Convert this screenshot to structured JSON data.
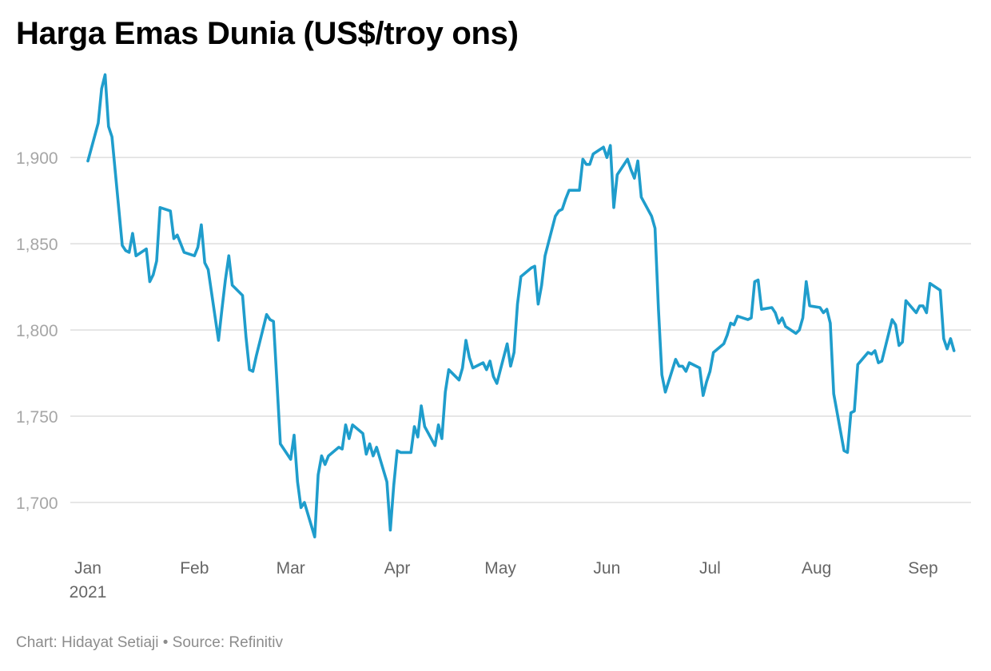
{
  "chart_data": {
    "type": "line",
    "title": "Harga Emas Dunia (US$/troy ons)",
    "xlabel": "",
    "ylabel": "",
    "y_tick_values": [
      1700,
      1750,
      1800,
      1850,
      1900
    ],
    "y_tick_labels": [
      "1,700",
      "1,750",
      "1,800",
      "1,850",
      "1,900"
    ],
    "ylim": [
      1675,
      1945
    ],
    "x_ticks": [
      {
        "date": "2021-01-01",
        "label": "Jan",
        "sublabel": "2021"
      },
      {
        "date": "2021-02-01",
        "label": "Feb",
        "sublabel": ""
      },
      {
        "date": "2021-03-01",
        "label": "Mar",
        "sublabel": ""
      },
      {
        "date": "2021-04-01",
        "label": "Apr",
        "sublabel": ""
      },
      {
        "date": "2021-05-01",
        "label": "May",
        "sublabel": ""
      },
      {
        "date": "2021-06-01",
        "label": "Jun",
        "sublabel": ""
      },
      {
        "date": "2021-07-01",
        "label": "Jul",
        "sublabel": ""
      },
      {
        "date": "2021-08-01",
        "label": "Aug",
        "sublabel": ""
      },
      {
        "date": "2021-09-01",
        "label": "Sep",
        "sublabel": ""
      }
    ],
    "xlim": [
      "2021-01-01",
      "2021-09-11"
    ],
    "grid": true,
    "series": [
      {
        "color": "#1f9dcc",
        "points": [
          [
            "2021-01-01",
            1898
          ],
          [
            "2021-01-04",
            1920
          ],
          [
            "2021-01-05",
            1940
          ],
          [
            "2021-01-06",
            1948
          ],
          [
            "2021-01-07",
            1918
          ],
          [
            "2021-01-08",
            1912
          ],
          [
            "2021-01-11",
            1849
          ],
          [
            "2021-01-12",
            1846
          ],
          [
            "2021-01-13",
            1845
          ],
          [
            "2021-01-14",
            1856
          ],
          [
            "2021-01-15",
            1843
          ],
          [
            "2021-01-18",
            1847
          ],
          [
            "2021-01-19",
            1828
          ],
          [
            "2021-01-20",
            1832
          ],
          [
            "2021-01-21",
            1840
          ],
          [
            "2021-01-22",
            1871
          ],
          [
            "2021-01-25",
            1869
          ],
          [
            "2021-01-26",
            1853
          ],
          [
            "2021-01-27",
            1855
          ],
          [
            "2021-01-28",
            1850
          ],
          [
            "2021-01-29",
            1845
          ],
          [
            "2021-02-01",
            1843
          ],
          [
            "2021-02-02",
            1848
          ],
          [
            "2021-02-03",
            1861
          ],
          [
            "2021-02-04",
            1839
          ],
          [
            "2021-02-05",
            1835
          ],
          [
            "2021-02-08",
            1794
          ],
          [
            "2021-02-09",
            1812
          ],
          [
            "2021-02-10",
            1829
          ],
          [
            "2021-02-11",
            1843
          ],
          [
            "2021-02-12",
            1826
          ],
          [
            "2021-02-15",
            1820
          ],
          [
            "2021-02-16",
            1796
          ],
          [
            "2021-02-17",
            1777
          ],
          [
            "2021-02-18",
            1776
          ],
          [
            "2021-02-19",
            1785
          ],
          [
            "2021-02-22",
            1809
          ],
          [
            "2021-02-23",
            1806
          ],
          [
            "2021-02-24",
            1805
          ],
          [
            "2021-02-25",
            1770
          ],
          [
            "2021-02-26",
            1734
          ],
          [
            "2021-03-01",
            1725
          ],
          [
            "2021-03-02",
            1739
          ],
          [
            "2021-03-03",
            1712
          ],
          [
            "2021-03-04",
            1697
          ],
          [
            "2021-03-05",
            1700
          ],
          [
            "2021-03-08",
            1680
          ],
          [
            "2021-03-09",
            1716
          ],
          [
            "2021-03-10",
            1727
          ],
          [
            "2021-03-11",
            1722
          ],
          [
            "2021-03-12",
            1727
          ],
          [
            "2021-03-15",
            1732
          ],
          [
            "2021-03-16",
            1731
          ],
          [
            "2021-03-17",
            1745
          ],
          [
            "2021-03-18",
            1737
          ],
          [
            "2021-03-19",
            1745
          ],
          [
            "2021-03-22",
            1740
          ],
          [
            "2021-03-23",
            1728
          ],
          [
            "2021-03-24",
            1734
          ],
          [
            "2021-03-25",
            1727
          ],
          [
            "2021-03-26",
            1732
          ],
          [
            "2021-03-29",
            1712
          ],
          [
            "2021-03-30",
            1684
          ],
          [
            "2021-03-31",
            1710
          ],
          [
            "2021-04-01",
            1730
          ],
          [
            "2021-04-02",
            1729
          ],
          [
            "2021-04-05",
            1729
          ],
          [
            "2021-04-06",
            1744
          ],
          [
            "2021-04-07",
            1738
          ],
          [
            "2021-04-08",
            1756
          ],
          [
            "2021-04-09",
            1744
          ],
          [
            "2021-04-12",
            1733
          ],
          [
            "2021-04-13",
            1745
          ],
          [
            "2021-04-14",
            1737
          ],
          [
            "2021-04-15",
            1764
          ],
          [
            "2021-04-16",
            1777
          ],
          [
            "2021-04-19",
            1771
          ],
          [
            "2021-04-20",
            1778
          ],
          [
            "2021-04-21",
            1794
          ],
          [
            "2021-04-22",
            1784
          ],
          [
            "2021-04-23",
            1778
          ],
          [
            "2021-04-26",
            1781
          ],
          [
            "2021-04-27",
            1777
          ],
          [
            "2021-04-28",
            1782
          ],
          [
            "2021-04-29",
            1773
          ],
          [
            "2021-04-30",
            1769
          ],
          [
            "2021-05-03",
            1792
          ],
          [
            "2021-05-04",
            1779
          ],
          [
            "2021-05-05",
            1787
          ],
          [
            "2021-05-06",
            1815
          ],
          [
            "2021-05-07",
            1831
          ],
          [
            "2021-05-10",
            1836
          ],
          [
            "2021-05-11",
            1837
          ],
          [
            "2021-05-12",
            1815
          ],
          [
            "2021-05-13",
            1826
          ],
          [
            "2021-05-14",
            1843
          ],
          [
            "2021-05-17",
            1866
          ],
          [
            "2021-05-18",
            1869
          ],
          [
            "2021-05-19",
            1870
          ],
          [
            "2021-05-20",
            1876
          ],
          [
            "2021-05-21",
            1881
          ],
          [
            "2021-05-24",
            1881
          ],
          [
            "2021-05-25",
            1899
          ],
          [
            "2021-05-26",
            1896
          ],
          [
            "2021-05-27",
            1896
          ],
          [
            "2021-05-28",
            1902
          ],
          [
            "2021-05-31",
            1906
          ],
          [
            "2021-06-01",
            1900
          ],
          [
            "2021-06-02",
            1907
          ],
          [
            "2021-06-03",
            1871
          ],
          [
            "2021-06-04",
            1890
          ],
          [
            "2021-06-07",
            1899
          ],
          [
            "2021-06-08",
            1893
          ],
          [
            "2021-06-09",
            1888
          ],
          [
            "2021-06-10",
            1898
          ],
          [
            "2021-06-11",
            1877
          ],
          [
            "2021-06-14",
            1866
          ],
          [
            "2021-06-15",
            1859
          ],
          [
            "2021-06-16",
            1812
          ],
          [
            "2021-06-17",
            1774
          ],
          [
            "2021-06-18",
            1764
          ],
          [
            "2021-06-21",
            1783
          ],
          [
            "2021-06-22",
            1779
          ],
          [
            "2021-06-23",
            1779
          ],
          [
            "2021-06-24",
            1776
          ],
          [
            "2021-06-25",
            1781
          ],
          [
            "2021-06-28",
            1778
          ],
          [
            "2021-06-29",
            1762
          ],
          [
            "2021-06-30",
            1770
          ],
          [
            "2021-07-01",
            1776
          ],
          [
            "2021-07-02",
            1787
          ],
          [
            "2021-07-05",
            1792
          ],
          [
            "2021-07-06",
            1797
          ],
          [
            "2021-07-07",
            1804
          ],
          [
            "2021-07-08",
            1803
          ],
          [
            "2021-07-09",
            1808
          ],
          [
            "2021-07-12",
            1806
          ],
          [
            "2021-07-13",
            1807
          ],
          [
            "2021-07-14",
            1828
          ],
          [
            "2021-07-15",
            1829
          ],
          [
            "2021-07-16",
            1812
          ],
          [
            "2021-07-19",
            1813
          ],
          [
            "2021-07-20",
            1810
          ],
          [
            "2021-07-21",
            1804
          ],
          [
            "2021-07-22",
            1807
          ],
          [
            "2021-07-23",
            1802
          ],
          [
            "2021-07-26",
            1798
          ],
          [
            "2021-07-27",
            1800
          ],
          [
            "2021-07-28",
            1807
          ],
          [
            "2021-07-29",
            1828
          ],
          [
            "2021-07-30",
            1814
          ],
          [
            "2021-08-02",
            1813
          ],
          [
            "2021-08-03",
            1810
          ],
          [
            "2021-08-04",
            1812
          ],
          [
            "2021-08-05",
            1804
          ],
          [
            "2021-08-06",
            1763
          ],
          [
            "2021-08-09",
            1730
          ],
          [
            "2021-08-10",
            1729
          ],
          [
            "2021-08-11",
            1752
          ],
          [
            "2021-08-12",
            1753
          ],
          [
            "2021-08-13",
            1780
          ],
          [
            "2021-08-16",
            1787
          ],
          [
            "2021-08-17",
            1786
          ],
          [
            "2021-08-18",
            1788
          ],
          [
            "2021-08-19",
            1781
          ],
          [
            "2021-08-20",
            1782
          ],
          [
            "2021-08-23",
            1806
          ],
          [
            "2021-08-24",
            1803
          ],
          [
            "2021-08-25",
            1791
          ],
          [
            "2021-08-26",
            1793
          ],
          [
            "2021-08-27",
            1817
          ],
          [
            "2021-08-30",
            1810
          ],
          [
            "2021-08-31",
            1814
          ],
          [
            "2021-09-01",
            1814
          ],
          [
            "2021-09-02",
            1810
          ],
          [
            "2021-09-03",
            1827
          ],
          [
            "2021-09-06",
            1823
          ],
          [
            "2021-09-07",
            1795
          ],
          [
            "2021-09-08",
            1789
          ],
          [
            "2021-09-09",
            1795
          ],
          [
            "2021-09-10",
            1788
          ]
        ]
      }
    ],
    "credit": "Chart: Hidayat Setiaji • Source: Refinitiv"
  }
}
